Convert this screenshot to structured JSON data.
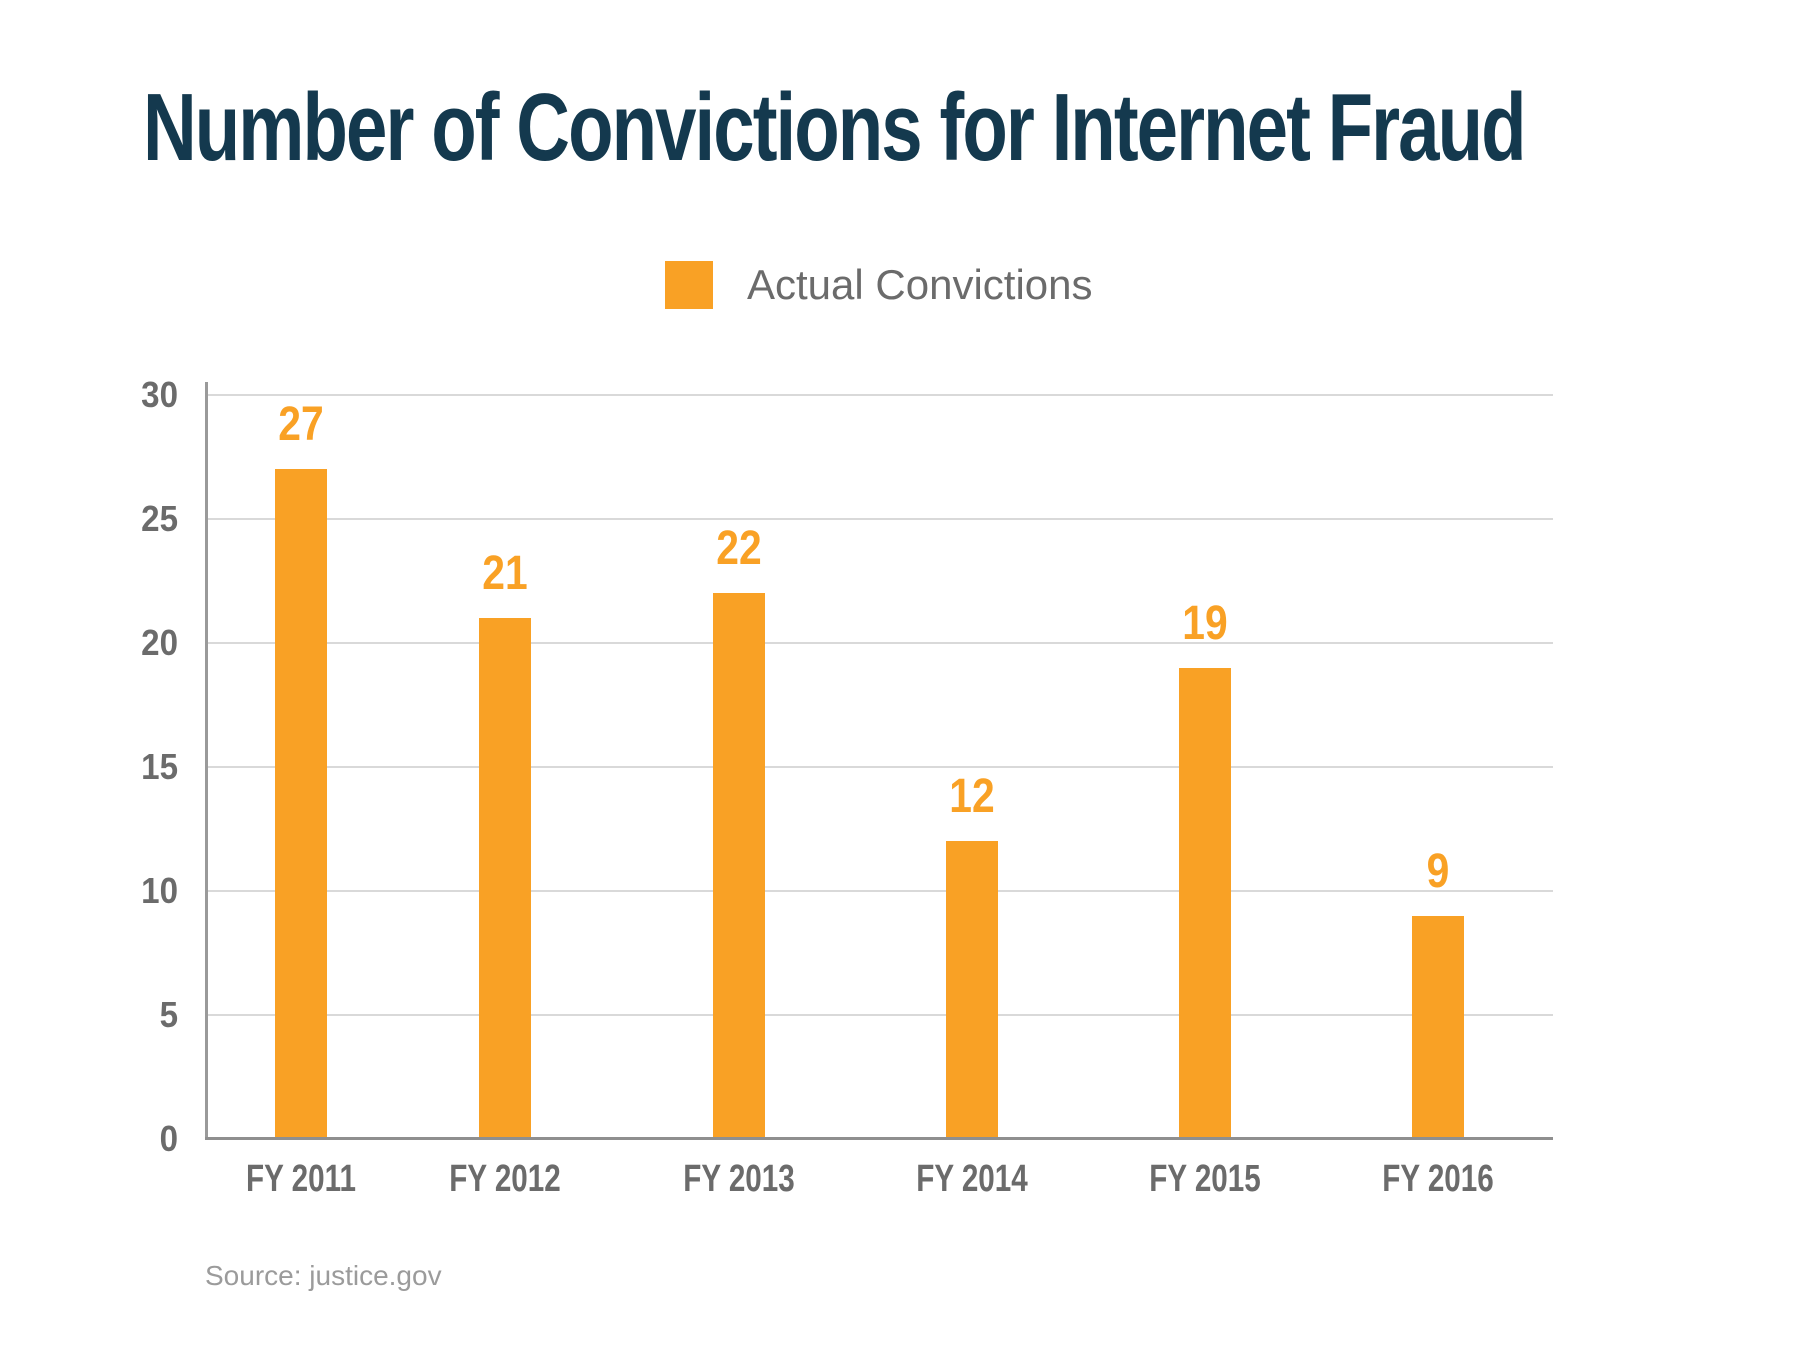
{
  "title": "Number of Convictions for Internet Fraud",
  "legend": {
    "label": "Actual Convictions",
    "swatch_color": "#F9A125"
  },
  "source_caption": "Source: justice.gov",
  "colors": {
    "bar": "#F9A125",
    "title": "#14394E",
    "axis_text": "#6B6B6B",
    "gridline": "#D9D9D9",
    "axis_line": "#9A9A9A",
    "source_text": "#9B9B9B",
    "background": "#FFFFFF"
  },
  "chart_data": {
    "type": "bar",
    "title": "Number of Convictions for Internet Fraud",
    "categories": [
      "FY 2011",
      "FY 2012",
      "FY 2013",
      "FY 2014",
      "FY 2015",
      "FY 2016"
    ],
    "values": [
      27,
      21,
      22,
      12,
      19,
      9
    ],
    "series": [
      {
        "name": "Actual Convictions",
        "values": [
          27,
          21,
          22,
          12,
          19,
          9
        ]
      }
    ],
    "data_labels": [
      "27",
      "21",
      "22",
      "12",
      "19",
      "9"
    ],
    "xlabel": "",
    "ylabel": "",
    "ylim": [
      0,
      30
    ],
    "yticks": [
      0,
      5,
      10,
      15,
      20,
      25,
      30
    ],
    "grid": true,
    "legend_position": "top-center",
    "bar_color": "#F9A125",
    "source": "Source: justice.gov"
  }
}
